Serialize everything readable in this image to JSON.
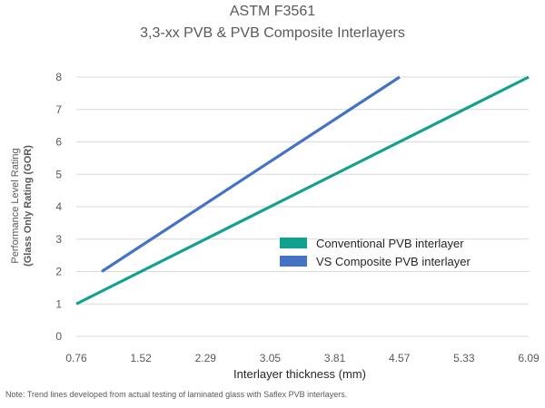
{
  "chart_data": {
    "type": "line",
    "title": "ASTM F3561",
    "subtitle": "3,3-xx PVB & PVB Composite Interlayers",
    "xlabel": "Interlayer thickness (mm)",
    "ylabel": "Performance Level Rating",
    "ylabel2": "(Glass Only Rating (GOR)",
    "x_ticks": [
      "0.76",
      "1.52",
      "2.29",
      "3.05",
      "3.81",
      "4.57",
      "5.33",
      "6.09"
    ],
    "y_ticks": [
      "0",
      "1",
      "2",
      "3",
      "4",
      "5",
      "6",
      "7",
      "8"
    ],
    "xlim": [
      0.76,
      6.09
    ],
    "ylim": [
      0,
      8
    ],
    "grid": "horizontal",
    "legend_position": "center-right",
    "series": [
      {
        "name": "Conventional PVB interlayer",
        "color": "#12A08F",
        "x": [
          0.76,
          6.09
        ],
        "y": [
          1,
          8
        ]
      },
      {
        "name": "VS Composite PVB interlayer",
        "color": "#4472C4",
        "x": [
          1.06,
          4.57
        ],
        "y": [
          2,
          8
        ]
      }
    ],
    "note": "Note: Trend lines developed from actual testing of laminated glass with Saflex PVB interlayers."
  }
}
